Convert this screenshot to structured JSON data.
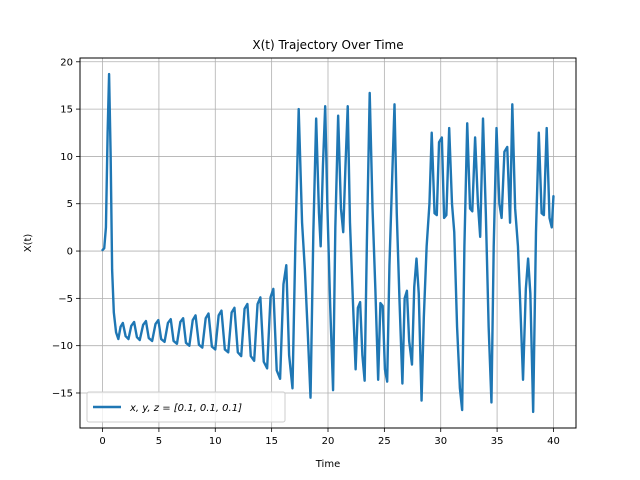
{
  "chart_data": {
    "type": "line",
    "title": "X(t) Trajectory Over Time",
    "xlabel": "Time",
    "ylabel": "X(t)",
    "xlim": [
      -2,
      42
    ],
    "ylim": [
      -18.7,
      20.4
    ],
    "xticks": [
      0,
      5,
      10,
      15,
      20,
      25,
      30,
      35,
      40
    ],
    "yticks": [
      -15,
      -10,
      -5,
      0,
      5,
      10,
      15,
      20
    ],
    "grid": true,
    "legend": {
      "placement": "lower-left"
    },
    "series": [
      {
        "name": "x, y, z = [0.1, 0.1, 0.1]",
        "color": "#1f77b4",
        "points": [
          [
            0.0,
            0.1
          ],
          [
            0.15,
            0.3
          ],
          [
            0.3,
            2.5
          ],
          [
            0.45,
            12.5
          ],
          [
            0.58,
            18.7
          ],
          [
            0.72,
            10.0
          ],
          [
            0.85,
            -2.0
          ],
          [
            1.0,
            -6.5
          ],
          [
            1.2,
            -8.6
          ],
          [
            1.4,
            -9.3
          ],
          [
            1.6,
            -8.0
          ],
          [
            1.8,
            -7.6
          ],
          [
            2.05,
            -9.0
          ],
          [
            2.3,
            -9.3
          ],
          [
            2.55,
            -7.9
          ],
          [
            2.8,
            -7.5
          ],
          [
            3.05,
            -9.1
          ],
          [
            3.3,
            -9.4
          ],
          [
            3.6,
            -7.8
          ],
          [
            3.85,
            -7.4
          ],
          [
            4.1,
            -9.2
          ],
          [
            4.4,
            -9.5
          ],
          [
            4.7,
            -7.7
          ],
          [
            4.95,
            -7.3
          ],
          [
            5.2,
            -9.3
          ],
          [
            5.5,
            -9.6
          ],
          [
            5.8,
            -7.6
          ],
          [
            6.05,
            -7.2
          ],
          [
            6.3,
            -9.5
          ],
          [
            6.6,
            -9.8
          ],
          [
            6.9,
            -7.5
          ],
          [
            7.15,
            -7.1
          ],
          [
            7.4,
            -9.7
          ],
          [
            7.7,
            -10.0
          ],
          [
            8.0,
            -7.3
          ],
          [
            8.25,
            -6.8
          ],
          [
            8.55,
            -9.9
          ],
          [
            8.85,
            -10.2
          ],
          [
            9.15,
            -7.1
          ],
          [
            9.4,
            -6.6
          ],
          [
            9.7,
            -10.1
          ],
          [
            10.0,
            -10.4
          ],
          [
            10.3,
            -6.8
          ],
          [
            10.55,
            -6.3
          ],
          [
            10.85,
            -10.4
          ],
          [
            11.15,
            -10.7
          ],
          [
            11.45,
            -6.5
          ],
          [
            11.7,
            -6.0
          ],
          [
            12.0,
            -10.7
          ],
          [
            12.3,
            -11.1
          ],
          [
            12.6,
            -6.1
          ],
          [
            12.85,
            -5.6
          ],
          [
            13.15,
            -11.1
          ],
          [
            13.45,
            -11.6
          ],
          [
            13.75,
            -5.6
          ],
          [
            14.0,
            -4.9
          ],
          [
            14.3,
            -11.7
          ],
          [
            14.6,
            -12.4
          ],
          [
            14.9,
            -4.9
          ],
          [
            15.15,
            -4.0
          ],
          [
            15.45,
            -12.6
          ],
          [
            15.75,
            -13.5
          ],
          [
            16.05,
            -3.5
          ],
          [
            16.3,
            -1.5
          ],
          [
            16.55,
            -11.0
          ],
          [
            16.85,
            -14.5
          ],
          [
            17.1,
            0.5
          ],
          [
            17.4,
            15.0
          ],
          [
            17.7,
            3.0
          ],
          [
            17.95,
            -2.0
          ],
          [
            18.2,
            -8.5
          ],
          [
            18.45,
            -15.5
          ],
          [
            18.7,
            2.0
          ],
          [
            18.95,
            14.0
          ],
          [
            19.2,
            4.0
          ],
          [
            19.35,
            0.5
          ],
          [
            19.55,
            9.0
          ],
          [
            19.75,
            15.3
          ],
          [
            19.95,
            4.5
          ],
          [
            20.2,
            -6.0
          ],
          [
            20.45,
            -14.7
          ],
          [
            20.65,
            2.5
          ],
          [
            20.9,
            14.3
          ],
          [
            21.15,
            4.5
          ],
          [
            21.35,
            2.0
          ],
          [
            21.55,
            9.0
          ],
          [
            21.75,
            15.3
          ],
          [
            21.95,
            3.0
          ],
          [
            22.2,
            -5.0
          ],
          [
            22.45,
            -12.5
          ],
          [
            22.65,
            -6.0
          ],
          [
            22.85,
            -5.4
          ],
          [
            23.05,
            -11.0
          ],
          [
            23.25,
            -13.7
          ],
          [
            23.45,
            1.0
          ],
          [
            23.7,
            16.7
          ],
          [
            23.95,
            4.5
          ],
          [
            24.2,
            -4.0
          ],
          [
            24.45,
            -13.6
          ],
          [
            24.65,
            -5.5
          ],
          [
            24.85,
            -5.8
          ],
          [
            25.05,
            -12.5
          ],
          [
            25.25,
            -13.8
          ],
          [
            25.45,
            -1.5
          ],
          [
            25.7,
            8.0
          ],
          [
            25.9,
            15.5
          ],
          [
            26.1,
            4.0
          ],
          [
            26.35,
            -5.5
          ],
          [
            26.6,
            -14.0
          ],
          [
            26.8,
            -5.0
          ],
          [
            27.0,
            -4.2
          ],
          [
            27.2,
            -9.5
          ],
          [
            27.45,
            -12.0
          ],
          [
            27.65,
            -3.8
          ],
          [
            27.85,
            -0.8
          ],
          [
            28.05,
            -4.5
          ],
          [
            28.3,
            -15.8
          ],
          [
            28.5,
            -7.0
          ],
          [
            28.75,
            0.5
          ],
          [
            29.0,
            5.0
          ],
          [
            29.2,
            12.5
          ],
          [
            29.45,
            4.0
          ],
          [
            29.65,
            3.8
          ],
          [
            29.85,
            11.5
          ],
          [
            30.1,
            12.0
          ],
          [
            30.3,
            3.5
          ],
          [
            30.5,
            3.8
          ],
          [
            30.75,
            13.0
          ],
          [
            31.0,
            5.0
          ],
          [
            31.2,
            2.0
          ],
          [
            31.45,
            -8.0
          ],
          [
            31.7,
            -14.5
          ],
          [
            31.9,
            -16.8
          ],
          [
            32.1,
            0.5
          ],
          [
            32.35,
            13.5
          ],
          [
            32.6,
            4.5
          ],
          [
            32.8,
            4.2
          ],
          [
            33.05,
            12.0
          ],
          [
            33.3,
            5.0
          ],
          [
            33.5,
            1.5
          ],
          [
            33.75,
            14.0
          ],
          [
            34.0,
            4.0
          ],
          [
            34.25,
            -8.0
          ],
          [
            34.5,
            -16.0
          ],
          [
            34.7,
            0.5
          ],
          [
            34.95,
            13.0
          ],
          [
            35.2,
            5.0
          ],
          [
            35.4,
            3.5
          ],
          [
            35.65,
            10.5
          ],
          [
            35.9,
            11.0
          ],
          [
            36.15,
            3.0
          ],
          [
            36.35,
            15.5
          ],
          [
            36.6,
            4.5
          ],
          [
            36.85,
            0.5
          ],
          [
            37.05,
            -5.5
          ],
          [
            37.3,
            -13.6
          ],
          [
            37.55,
            -4.0
          ],
          [
            37.75,
            -0.8
          ],
          [
            37.95,
            -4.5
          ],
          [
            38.2,
            -17.0
          ],
          [
            38.45,
            2.0
          ],
          [
            38.7,
            12.5
          ],
          [
            38.95,
            4.0
          ],
          [
            39.15,
            3.8
          ],
          [
            39.4,
            13.0
          ],
          [
            39.65,
            3.5
          ],
          [
            39.85,
            2.5
          ],
          [
            40.0,
            5.8
          ]
        ]
      }
    ]
  }
}
